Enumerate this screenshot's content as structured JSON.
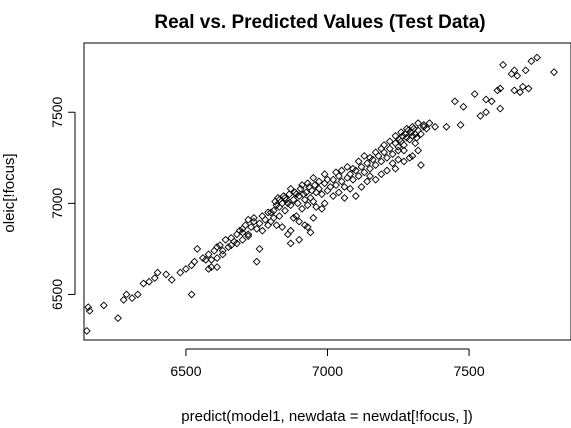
{
  "chart_data": {
    "type": "scatter",
    "title": "Real vs. Predicted Values (Test Data)",
    "xlabel": "predict(model1, newdata = newdat[!focus, ])",
    "ylabel": "oleic[!focus]",
    "xlim": [
      6140,
      7860
    ],
    "ylim": [
      6250,
      7880
    ],
    "x_ticks": [
      6500,
      7000,
      7500
    ],
    "y_ticks": [
      6500,
      7000,
      7500
    ],
    "grid": false,
    "legend": "none",
    "marker": "open-diamond",
    "points": [
      [
        6150,
        6300
      ],
      [
        6155,
        6430
      ],
      [
        6160,
        6410
      ],
      [
        6210,
        6440
      ],
      [
        6260,
        6370
      ],
      [
        6280,
        6470
      ],
      [
        6290,
        6500
      ],
      [
        6310,
        6480
      ],
      [
        6330,
        6500
      ],
      [
        6350,
        6560
      ],
      [
        6370,
        6570
      ],
      [
        6390,
        6590
      ],
      [
        6400,
        6620
      ],
      [
        6430,
        6610
      ],
      [
        6450,
        6580
      ],
      [
        6480,
        6620
      ],
      [
        6500,
        6640
      ],
      [
        6520,
        6660
      ],
      [
        6530,
        6680
      ],
      [
        6540,
        6750
      ],
      [
        6560,
        6700
      ],
      [
        6570,
        6690
      ],
      [
        6580,
        6720
      ],
      [
        6590,
        6650
      ],
      [
        6600,
        6740
      ],
      [
        6610,
        6700
      ],
      [
        6620,
        6770
      ],
      [
        6630,
        6720
      ],
      [
        6640,
        6800
      ],
      [
        6650,
        6760
      ],
      [
        6660,
        6810
      ],
      [
        6670,
        6790
      ],
      [
        6680,
        6780
      ],
      [
        6690,
        6850
      ],
      [
        6700,
        6840
      ],
      [
        6710,
        6880
      ],
      [
        6720,
        6820
      ],
      [
        6730,
        6870
      ],
      [
        6740,
        6900
      ],
      [
        6750,
        6860
      ],
      [
        6760,
        6890
      ],
      [
        6770,
        6930
      ],
      [
        6780,
        6910
      ],
      [
        6790,
        6880
      ],
      [
        6800,
        6950
      ],
      [
        6810,
        6960
      ],
      [
        6815,
        7010
      ],
      [
        6820,
        6990
      ],
      [
        6825,
        7030
      ],
      [
        6830,
        6980
      ],
      [
        6840,
        7000
      ],
      [
        6845,
        7040
      ],
      [
        6850,
        6960
      ],
      [
        6855,
        7020
      ],
      [
        6860,
        7000
      ],
      [
        6865,
        7050
      ],
      [
        6870,
        6990
      ],
      [
        6880,
        7020
      ],
      [
        6885,
        7060
      ],
      [
        6890,
        6930
      ],
      [
        6895,
        7000
      ],
      [
        6900,
        7040
      ],
      [
        6905,
        7080
      ],
      [
        6910,
        6970
      ],
      [
        6915,
        7050
      ],
      [
        6920,
        7020
      ],
      [
        6925,
        7060
      ],
      [
        6930,
        6990
      ],
      [
        6935,
        7090
      ],
      [
        6940,
        7030
      ],
      [
        6945,
        7070
      ],
      [
        6950,
        7010
      ],
      [
        6955,
        7100
      ],
      [
        6960,
        7060
      ],
      [
        6970,
        7080
      ],
      [
        6980,
        7050
      ],
      [
        6990,
        7110
      ],
      [
        7000,
        7070
      ],
      [
        7010,
        7090
      ],
      [
        7020,
        7130
      ],
      [
        7030,
        7100
      ],
      [
        7040,
        7150
      ],
      [
        7050,
        7120
      ],
      [
        7060,
        7090
      ],
      [
        7070,
        7140
      ],
      [
        7080,
        7160
      ],
      [
        7090,
        7130
      ],
      [
        7100,
        7180
      ],
      [
        7110,
        7150
      ],
      [
        7120,
        7200
      ],
      [
        7130,
        7170
      ],
      [
        7140,
        7220
      ],
      [
        7150,
        7190
      ],
      [
        7160,
        7240
      ],
      [
        7170,
        7210
      ],
      [
        7180,
        7260
      ],
      [
        7190,
        7230
      ],
      [
        7200,
        7280
      ],
      [
        7210,
        7250
      ],
      [
        7220,
        7300
      ],
      [
        7230,
        7270
      ],
      [
        7240,
        7330
      ],
      [
        7250,
        7310
      ],
      [
        7255,
        7350
      ],
      [
        7260,
        7340
      ],
      [
        7265,
        7370
      ],
      [
        7270,
        7320
      ],
      [
        7275,
        7380
      ],
      [
        7280,
        7360
      ],
      [
        7285,
        7400
      ],
      [
        7290,
        7350
      ],
      [
        7295,
        7390
      ],
      [
        7300,
        7370
      ],
      [
        7305,
        7410
      ],
      [
        7310,
        7380
      ],
      [
        7315,
        7360
      ],
      [
        7320,
        7400
      ],
      [
        7330,
        7380
      ],
      [
        7340,
        7420
      ],
      [
        7350,
        7410
      ],
      [
        7310,
        7330
      ],
      [
        7320,
        7290
      ],
      [
        7270,
        7290
      ],
      [
        7250,
        7290
      ],
      [
        7300,
        7260
      ],
      [
        7330,
        7210
      ],
      [
        7420,
        7420
      ],
      [
        7450,
        7560
      ],
      [
        7480,
        7530
      ],
      [
        7520,
        7600
      ],
      [
        7540,
        7480
      ],
      [
        7560,
        7570
      ],
      [
        7580,
        7560
      ],
      [
        7600,
        7620
      ],
      [
        7610,
        7630
      ],
      [
        7620,
        7760
      ],
      [
        7650,
        7710
      ],
      [
        7660,
        7730
      ],
      [
        7670,
        7700
      ],
      [
        7680,
        7610
      ],
      [
        7690,
        7640
      ],
      [
        7700,
        7730
      ],
      [
        7720,
        7780
      ],
      [
        7740,
        7800
      ],
      [
        7800,
        7720
      ],
      [
        7710,
        7630
      ],
      [
        7660,
        7620
      ],
      [
        7610,
        7520
      ],
      [
        7560,
        7500
      ],
      [
        7470,
        7430
      ],
      [
        6520,
        6500
      ],
      [
        6580,
        6640
      ],
      [
        6610,
        6650
      ],
      [
        6700,
        6800
      ],
      [
        6720,
        6830
      ],
      [
        6750,
        6680
      ],
      [
        6760,
        6750
      ],
      [
        6800,
        6900
      ],
      [
        6820,
        6880
      ],
      [
        6830,
        6930
      ],
      [
        6840,
        6870
      ],
      [
        6870,
        6850
      ],
      [
        6880,
        6920
      ],
      [
        6900,
        6900
      ],
      [
        6920,
        6880
      ],
      [
        6930,
        6870
      ],
      [
        6950,
        6920
      ],
      [
        6960,
        6980
      ],
      [
        6980,
        6970
      ],
      [
        6990,
        7000
      ],
      [
        6940,
        6840
      ],
      [
        6900,
        6800
      ],
      [
        6870,
        6780
      ],
      [
        6860,
        6830
      ],
      [
        7020,
        7040
      ],
      [
        7040,
        7060
      ],
      [
        7060,
        7030
      ],
      [
        7080,
        7080
      ],
      [
        7100,
        7040
      ],
      [
        7120,
        7090
      ],
      [
        7140,
        7120
      ],
      [
        7150,
        7150
      ],
      [
        7170,
        7130
      ],
      [
        7190,
        7160
      ],
      [
        7210,
        7180
      ],
      [
        7230,
        7220
      ],
      [
        7240,
        7190
      ],
      [
        7250,
        7240
      ],
      [
        7270,
        7230
      ],
      [
        7290,
        7250
      ],
      [
        6590,
        6690
      ],
      [
        6610,
        6760
      ],
      [
        6630,
        6740
      ],
      [
        6660,
        6770
      ],
      [
        6680,
        6830
      ],
      [
        6700,
        6860
      ],
      [
        6720,
        6910
      ],
      [
        6740,
        6920
      ],
      [
        6770,
        6850
      ],
      [
        6790,
        6950
      ],
      [
        6810,
        6920
      ],
      [
        6830,
        7020
      ],
      [
        6850,
        7030
      ],
      [
        6870,
        7080
      ],
      [
        6890,
        7050
      ],
      [
        6910,
        7100
      ],
      [
        6930,
        7110
      ],
      [
        6950,
        7140
      ],
      [
        6970,
        7120
      ],
      [
        6990,
        7160
      ],
      [
        7000,
        7130
      ],
      [
        7030,
        7170
      ],
      [
        7050,
        7180
      ],
      [
        7070,
        7200
      ],
      [
        7090,
        7190
      ],
      [
        7110,
        7230
      ],
      [
        7130,
        7260
      ],
      [
        7150,
        7250
      ],
      [
        7170,
        7280
      ],
      [
        7190,
        7300
      ],
      [
        7200,
        7320
      ],
      [
        7220,
        7340
      ],
      [
        7240,
        7370
      ],
      [
        7260,
        7390
      ],
      [
        7280,
        7410
      ],
      [
        7300,
        7420
      ],
      [
        7320,
        7440
      ],
      [
        7340,
        7430
      ],
      [
        7360,
        7440
      ],
      [
        7380,
        7420
      ]
    ]
  }
}
